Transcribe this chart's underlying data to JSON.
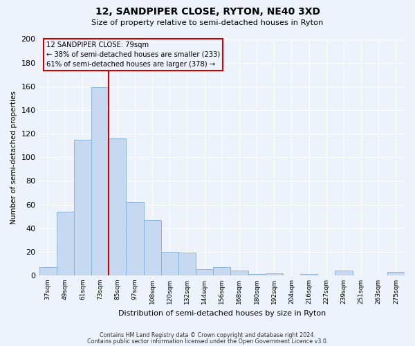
{
  "title": "12, SANDPIPER CLOSE, RYTON, NE40 3XD",
  "subtitle": "Size of property relative to semi-detached houses in Ryton",
  "xlabel": "Distribution of semi-detached houses by size in Ryton",
  "ylabel": "Number of semi-detached properties",
  "bar_labels": [
    "37sqm",
    "49sqm",
    "61sqm",
    "73sqm",
    "85sqm",
    "97sqm",
    "108sqm",
    "120sqm",
    "132sqm",
    "144sqm",
    "156sqm",
    "168sqm",
    "180sqm",
    "192sqm",
    "204sqm",
    "216sqm",
    "227sqm",
    "239sqm",
    "251sqm",
    "263sqm",
    "275sqm"
  ],
  "bar_values": [
    7,
    54,
    115,
    159,
    116,
    62,
    47,
    20,
    19,
    5,
    7,
    4,
    1,
    2,
    0,
    1,
    0,
    4,
    0,
    0,
    3
  ],
  "bar_color": "#c6d9f0",
  "bar_edge_color": "#7fb0d8",
  "property_label": "12 SANDPIPER CLOSE: 79sqm",
  "annotation_smaller": "← 38% of semi-detached houses are smaller (233)",
  "annotation_larger": "61% of semi-detached houses are larger (378) →",
  "vline_color": "#cc0000",
  "annotation_box_color": "#cc0000",
  "ylim": [
    0,
    200
  ],
  "yticks": [
    0,
    20,
    40,
    60,
    80,
    100,
    120,
    140,
    160,
    180,
    200
  ],
  "background_color": "#eef2fa",
  "grid_color": "#ffffff",
  "footer1": "Contains HM Land Registry data © Crown copyright and database right 2024.",
  "footer2": "Contains public sector information licensed under the Open Government Licence v3.0."
}
